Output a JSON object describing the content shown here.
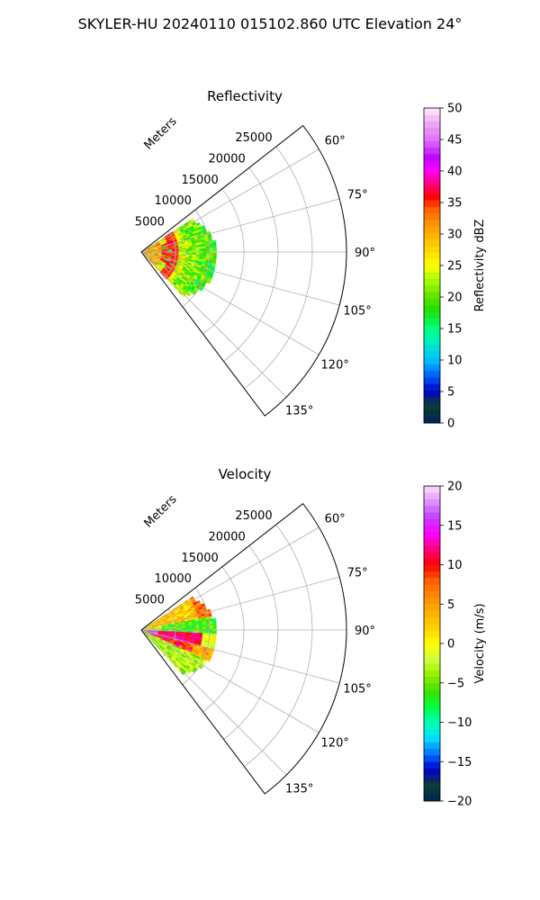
{
  "suptitle": "SKYLER-HU  20240110  015102.860 UTC Elevation 24°",
  "chart_data": [
    {
      "type": "polar-sector-ppi",
      "title": "Reflectivity",
      "radial_label": "Meters",
      "theta_range_deg": [
        52,
        143
      ],
      "r_range": [
        0,
        30000
      ],
      "r_ticks": [
        5000,
        10000,
        15000,
        20000,
        25000
      ],
      "r_tick_labels": [
        "5000",
        "10000",
        "15000",
        "20000",
        "25000"
      ],
      "theta_ticks": [
        60,
        75,
        90,
        105,
        120,
        135
      ],
      "theta_tick_labels": [
        "60°",
        "75°",
        "90°",
        "105°",
        "120°",
        "135°"
      ],
      "grid": true,
      "data_extent": {
        "theta_deg": [
          57,
          137
        ],
        "r_max_approx": 11000
      },
      "colorbar": {
        "label": "Reflectivity dBZ",
        "range": [
          0,
          50
        ],
        "ticks": [
          0,
          5,
          10,
          15,
          20,
          25,
          30,
          35,
          40,
          45,
          50
        ],
        "tick_labels": [
          "0",
          "5",
          "10",
          "15",
          "20",
          "25",
          "30",
          "35",
          "40",
          "45",
          "50"
        ],
        "colormap": [
          {
            "v": 0,
            "c": "#00205a"
          },
          {
            "v": 3,
            "c": "#0a4030"
          },
          {
            "v": 5,
            "c": "#0000cc"
          },
          {
            "v": 8,
            "c": "#0070ff"
          },
          {
            "v": 10,
            "c": "#00c0ff"
          },
          {
            "v": 13,
            "c": "#00f0c0"
          },
          {
            "v": 15,
            "c": "#00ff80"
          },
          {
            "v": 18,
            "c": "#20e000"
          },
          {
            "v": 20,
            "c": "#60e000"
          },
          {
            "v": 23,
            "c": "#b0ff00"
          },
          {
            "v": 25,
            "c": "#ffff00"
          },
          {
            "v": 28,
            "c": "#ffd000"
          },
          {
            "v": 31,
            "c": "#ffa000"
          },
          {
            "v": 34,
            "c": "#ff6000"
          },
          {
            "v": 36,
            "c": "#ff0000"
          },
          {
            "v": 38,
            "c": "#ff0080"
          },
          {
            "v": 40,
            "c": "#ff00ff"
          },
          {
            "v": 42,
            "c": "#c000ff"
          },
          {
            "v": 45,
            "c": "#e070ff"
          },
          {
            "v": 48,
            "c": "#f0b0f0"
          },
          {
            "v": 50,
            "c": "#fff0ff"
          }
        ]
      }
    },
    {
      "type": "polar-sector-ppi",
      "title": "Velocity",
      "radial_label": "Meters",
      "theta_range_deg": [
        52,
        143
      ],
      "r_range": [
        0,
        30000
      ],
      "r_ticks": [
        5000,
        10000,
        15000,
        20000,
        25000
      ],
      "r_tick_labels": [
        "5000",
        "10000",
        "15000",
        "20000",
        "25000"
      ],
      "theta_ticks": [
        60,
        75,
        90,
        105,
        120,
        135
      ],
      "theta_tick_labels": [
        "60°",
        "75°",
        "90°",
        "105°",
        "120°",
        "135°"
      ],
      "grid": true,
      "data_extent": {
        "theta_deg": [
          57,
          137
        ],
        "r_max_approx": 11000
      },
      "colorbar": {
        "label": "Velocity (m/s)",
        "range": [
          -20,
          20
        ],
        "ticks": [
          -20,
          -15,
          -10,
          -5,
          0,
          5,
          10,
          15,
          20
        ],
        "tick_labels": [
          "−20",
          "−15",
          "−10",
          "−5",
          "0",
          "5",
          "10",
          "15",
          "20"
        ],
        "colormap": [
          {
            "v": -20,
            "c": "#00205a"
          },
          {
            "v": -18,
            "c": "#0a4030"
          },
          {
            "v": -16,
            "c": "#0000cc"
          },
          {
            "v": -14,
            "c": "#0070ff"
          },
          {
            "v": -12,
            "c": "#00e0ff"
          },
          {
            "v": -10,
            "c": "#00ffb0"
          },
          {
            "v": -8,
            "c": "#00ff40"
          },
          {
            "v": -6,
            "c": "#40e000"
          },
          {
            "v": -4,
            "c": "#90f000"
          },
          {
            "v": -2,
            "c": "#d0ff40"
          },
          {
            "v": 0,
            "c": "#ffff00"
          },
          {
            "v": 2,
            "c": "#ffd000"
          },
          {
            "v": 5,
            "c": "#ffa000"
          },
          {
            "v": 8,
            "c": "#ff6000"
          },
          {
            "v": 10,
            "c": "#ff0000"
          },
          {
            "v": 12,
            "c": "#ff0080"
          },
          {
            "v": 14,
            "c": "#ff00ff"
          },
          {
            "v": 16,
            "c": "#c040ff"
          },
          {
            "v": 18,
            "c": "#e090ff"
          },
          {
            "v": 20,
            "c": "#fbe0fb"
          }
        ]
      }
    }
  ]
}
